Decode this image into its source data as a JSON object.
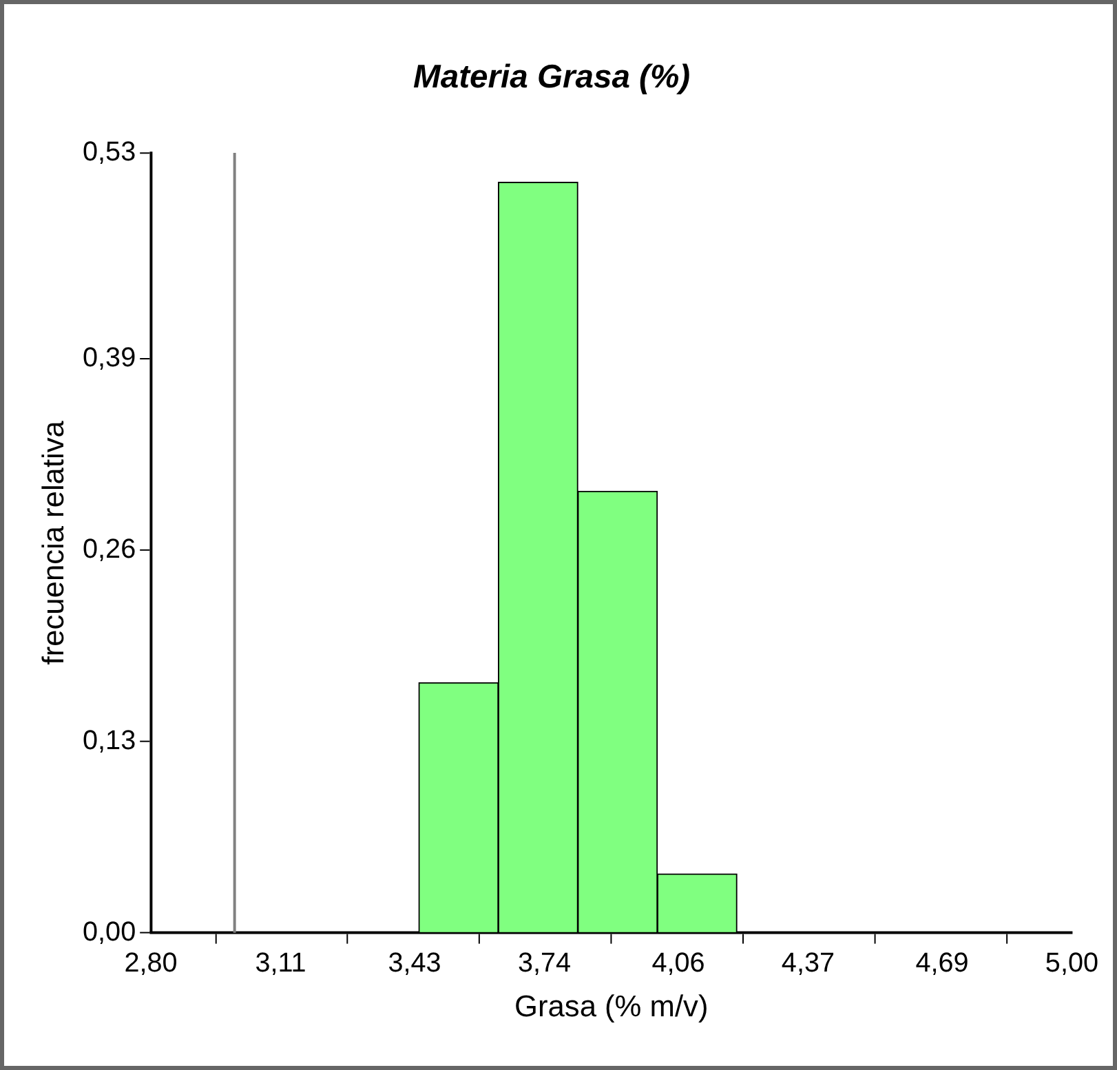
{
  "chart_data": {
    "type": "histogram",
    "title": "Materia Grasa (%)",
    "xlabel": "Grasa (% m/v)",
    "ylabel": "frecuencia relativa",
    "bins": [
      3.44,
      3.63,
      3.82,
      4.01,
      4.2
    ],
    "values": [
      0.17,
      0.51,
      0.3,
      0.04
    ],
    "color": "#80ff80",
    "xlim": [
      2.8,
      5.0
    ],
    "xticks": [
      {
        "value": 2.8,
        "label": "2,80"
      },
      {
        "value": 3.11,
        "label": "3,11"
      },
      {
        "value": 3.43,
        "label": "3,43"
      },
      {
        "value": 3.74,
        "label": "3,74"
      },
      {
        "value": 4.06,
        "label": "4,06"
      },
      {
        "value": 4.37,
        "label": "4,37"
      },
      {
        "value": 4.69,
        "label": "4,69"
      },
      {
        "value": 5.0,
        "label": "5,00"
      }
    ],
    "ylim": [
      0,
      0.53
    ],
    "yticks": [
      {
        "value": 0,
        "label": "0,00"
      },
      {
        "value": 0.13,
        "label": "0,13"
      },
      {
        "value": 0.26,
        "label": "0,26"
      },
      {
        "value": 0.39,
        "label": "0,39"
      },
      {
        "value": 0.53,
        "label": "0,53"
      }
    ],
    "ref_lines": [
      {
        "axis": "x",
        "value": 3.0,
        "color": "#808080"
      }
    ],
    "grid": false,
    "legend": false
  }
}
